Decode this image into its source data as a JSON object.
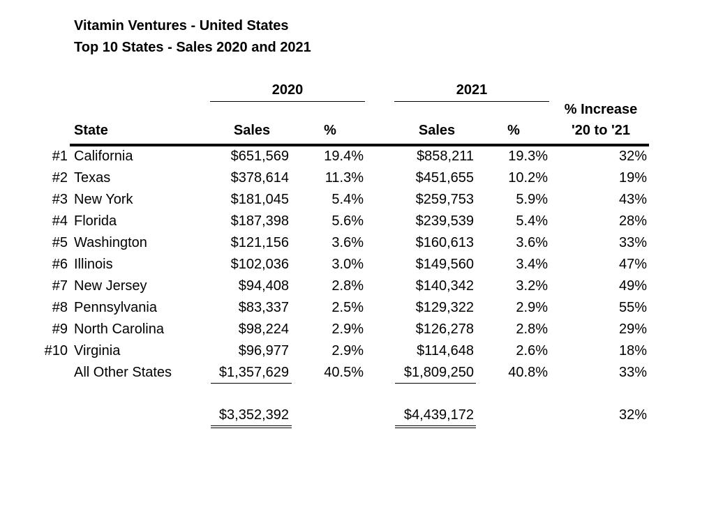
{
  "title_line1": "Vitamin Ventures - United States",
  "title_line2": "Top 10 States - Sales 2020 and 2021",
  "headers": {
    "year_2020": "2020",
    "year_2021": "2021",
    "state": "State",
    "sales_2020": "Sales",
    "pct_2020": "%",
    "sales_2021": "Sales",
    "pct_2021": "%",
    "increase_line1": "% Increase",
    "increase_line2": "'20 to '21"
  },
  "rows": [
    {
      "rank": "#1",
      "state": "California",
      "sales_2020": "$651,569",
      "pct_2020": "19.4%",
      "sales_2021": "$858,211",
      "pct_2021": "19.3%",
      "increase": "32%"
    },
    {
      "rank": "#2",
      "state": "Texas",
      "sales_2020": "$378,614",
      "pct_2020": "11.3%",
      "sales_2021": "$451,655",
      "pct_2021": "10.2%",
      "increase": "19%"
    },
    {
      "rank": "#3",
      "state": "New York",
      "sales_2020": "$181,045",
      "pct_2020": "5.4%",
      "sales_2021": "$259,753",
      "pct_2021": "5.9%",
      "increase": "43%"
    },
    {
      "rank": "#4",
      "state": "Florida",
      "sales_2020": "$187,398",
      "pct_2020": "5.6%",
      "sales_2021": "$239,539",
      "pct_2021": "5.4%",
      "increase": "28%"
    },
    {
      "rank": "#5",
      "state": "Washington",
      "sales_2020": "$121,156",
      "pct_2020": "3.6%",
      "sales_2021": "$160,613",
      "pct_2021": "3.6%",
      "increase": "33%"
    },
    {
      "rank": "#6",
      "state": "Illinois",
      "sales_2020": "$102,036",
      "pct_2020": "3.0%",
      "sales_2021": "$149,560",
      "pct_2021": "3.4%",
      "increase": "47%"
    },
    {
      "rank": "#7",
      "state": "New Jersey",
      "sales_2020": "$94,408",
      "pct_2020": "2.8%",
      "sales_2021": "$140,342",
      "pct_2021": "3.2%",
      "increase": "49%"
    },
    {
      "rank": "#8",
      "state": "Pennsylvania",
      "sales_2020": "$83,337",
      "pct_2020": "2.5%",
      "sales_2021": "$129,322",
      "pct_2021": "2.9%",
      "increase": "55%"
    },
    {
      "rank": "#9",
      "state": "North Carolina",
      "sales_2020": "$98,224",
      "pct_2020": "2.9%",
      "sales_2021": "$126,278",
      "pct_2021": "2.8%",
      "increase": "29%"
    },
    {
      "rank": "#10",
      "state": "Virginia",
      "sales_2020": "$96,977",
      "pct_2020": "2.9%",
      "sales_2021": "$114,648",
      "pct_2021": "2.6%",
      "increase": "18%"
    },
    {
      "rank": "",
      "state": "All Other States",
      "sales_2020": "$1,357,629",
      "pct_2020": "40.5%",
      "sales_2021": "$1,809,250",
      "pct_2021": "40.8%",
      "increase": "33%"
    }
  ],
  "totals": {
    "sales_2020": "$3,352,392",
    "sales_2021": "$4,439,172",
    "increase": "32%"
  }
}
